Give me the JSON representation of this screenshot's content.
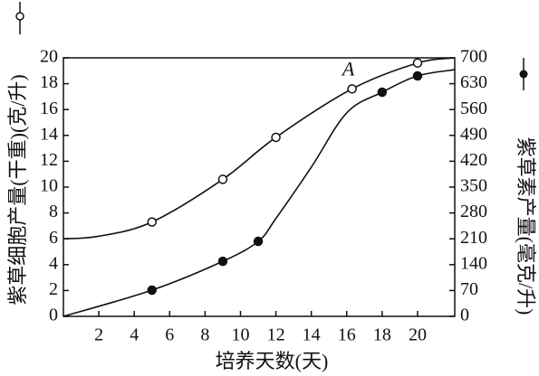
{
  "chart_data": {
    "type": "line",
    "xlabel": "培养天数(天)",
    "ylabel": "紫草细胞产量(干重)(克/升)",
    "y2label": "紫草素产量(毫克/升)",
    "annotation": "A",
    "xlim": [
      0,
      22.1
    ],
    "xticks": [
      2,
      4,
      6,
      8,
      10,
      12,
      14,
      16,
      18,
      20
    ],
    "ylim": [
      0,
      20
    ],
    "yticks": [
      0,
      2,
      4,
      6,
      8,
      10,
      12,
      14,
      16,
      18,
      20
    ],
    "y2lim": [
      0,
      700
    ],
    "y2ticks": [
      0,
      70,
      140,
      210,
      280,
      350,
      420,
      490,
      560,
      630,
      700
    ],
    "series": [
      {
        "axis": "y",
        "marker": "open",
        "line": {
          "x": [
            0,
            2,
            5,
            9,
            12,
            16.3,
            20,
            22.1
          ],
          "values": [
            6,
            6.2,
            7.3,
            10.6,
            13.85,
            17.6,
            19.6,
            20
          ]
        },
        "points": {
          "x": [
            5,
            9,
            12,
            16.3,
            20
          ],
          "values": [
            7.3,
            10.6,
            13.85,
            17.6,
            19.6
          ]
        }
      },
      {
        "axis": "y2",
        "marker": "filled",
        "line": {
          "x": [
            0,
            5,
            9,
            11,
            12,
            14,
            16,
            18,
            20,
            22.1
          ],
          "values": [
            0,
            71,
            149,
            203,
            265,
            404,
            551,
            607,
            651,
            668
          ]
        },
        "points": {
          "x": [
            5,
            9,
            11,
            18,
            20
          ],
          "values": [
            71,
            149,
            203,
            607,
            651
          ]
        }
      }
    ]
  }
}
